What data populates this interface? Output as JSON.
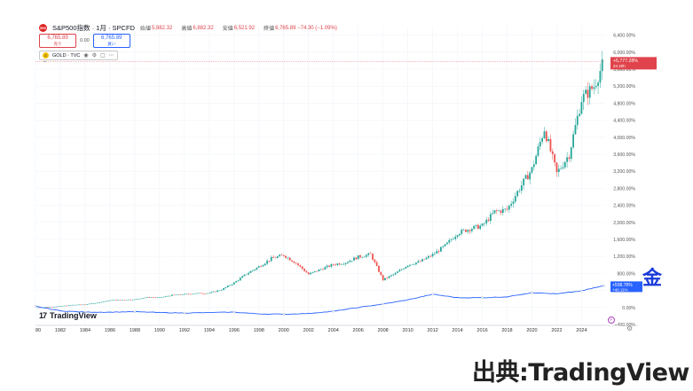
{
  "header": {
    "title": "S&P500指数 · 1月 · SPCFD",
    "ohlc": [
      {
        "label": "始値",
        "value": "5,882.32"
      },
      {
        "label": "高値",
        "value": "6,882.32"
      },
      {
        "label": "安値",
        "value": "6,521.92"
      },
      {
        "label": "終値",
        "value": "6,765.89 −74.30 (−1.09%)"
      }
    ]
  },
  "trade": {
    "sell_price": "6,765.89",
    "sell_label": "売り",
    "spread": "0.00",
    "buy_price": "6,765.89",
    "buy_label": "買い"
  },
  "compare": {
    "symbol": "GOLD · TVC"
  },
  "branding": {
    "logo_text": "TradingView",
    "logo_mark": "17"
  },
  "annotations": {
    "gold_label": "金",
    "credit": "出典:TradingView"
  },
  "colors": {
    "up": "#26a69a",
    "down": "#ef5350",
    "gold_line": "#2962ff",
    "last_price": "#e0434c"
  },
  "chart_data": {
    "type": "line",
    "title": "",
    "y_unit": "%",
    "y_ticks": [
      "6,400.00%",
      "6,000.00%",
      "5,600.00%",
      "5,200.00%",
      "4,800.00%",
      "4,400.00%",
      "4,000.00%",
      "3,600.00%",
      "3,200.00%",
      "2,800.00%",
      "2,400.00%",
      "2,000.00%",
      "1,600.00%",
      "1,200.00%",
      "800.00%",
      "400.00%",
      "0.00%",
      "−400.00%"
    ],
    "y_tick_values": [
      6400,
      6000,
      5600,
      5200,
      4800,
      4400,
      4000,
      3600,
      3200,
      2800,
      2400,
      2000,
      1600,
      1200,
      800,
      400,
      0,
      -400
    ],
    "x_ticks": [
      "80",
      "1982",
      "1984",
      "1986",
      "1988",
      "1990",
      "1992",
      "1994",
      "1996",
      "1998",
      "2000",
      "2002",
      "2004",
      "2006",
      "2008",
      "2010",
      "2012",
      "2014",
      "2016",
      "2018",
      "2020",
      "2022",
      "2024"
    ],
    "x_tick_values": [
      1980,
      1982,
      1984,
      1986,
      1988,
      1990,
      1992,
      1994,
      1996,
      1998,
      2000,
      2002,
      2004,
      2006,
      2008,
      2010,
      2012,
      2014,
      2016,
      2018,
      2020,
      2022,
      2024
    ],
    "xlim": [
      1980,
      2025.9
    ],
    "ylim": [
      -400,
      6600
    ],
    "last_labels": {
      "spx": {
        "value": "+5,777.28%",
        "sub": "24 20h"
      },
      "gold": {
        "value": "+508.78%",
        "sub": "+40.11%"
      }
    },
    "series": [
      {
        "name": "S&P500指数",
        "style": "candles",
        "x": [
          1980,
          1981,
          1982,
          1983,
          1984,
          1985,
          1986,
          1987,
          1988,
          1989,
          1990,
          1991,
          1992,
          1993,
          1994,
          1995,
          1996,
          1997,
          1998,
          1999,
          2000,
          2001,
          2002,
          2003,
          2004,
          2005,
          2006,
          2007,
          2008,
          2009,
          2010,
          2011,
          2012,
          2013,
          2014,
          2015,
          2016,
          2017,
          2018,
          2019,
          2020,
          2021,
          2022,
          2023,
          2024,
          2025,
          2025.8
        ],
        "y": [
          0,
          10,
          30,
          60,
          70,
          110,
          170,
          180,
          190,
          240,
          230,
          290,
          310,
          330,
          340,
          420,
          580,
          790,
          960,
          1150,
          1230,
          1040,
          780,
          900,
          1010,
          1060,
          1190,
          1250,
          650,
          800,
          1000,
          1080,
          1240,
          1450,
          1750,
          1850,
          1920,
          2250,
          2300,
          2800,
          3250,
          4200,
          3150,
          3600,
          4900,
          5200,
          5780
        ]
      },
      {
        "name": "GOLD · TVC",
        "style": "line",
        "x": [
          1980,
          1982,
          1984,
          1986,
          1988,
          1990,
          1992,
          1994,
          1996,
          1998,
          2000,
          2002,
          2004,
          2006,
          2008,
          2010,
          2012,
          2014,
          2016,
          2018,
          2020,
          2022,
          2024,
          2025,
          2025.8
        ],
        "y": [
          30,
          -80,
          -110,
          -110,
          -100,
          -120,
          -130,
          -120,
          -110,
          -150,
          -160,
          -140,
          -90,
          0,
          80,
          180,
          310,
          230,
          230,
          250,
          350,
          320,
          390,
          460,
          509
        ]
      }
    ]
  }
}
